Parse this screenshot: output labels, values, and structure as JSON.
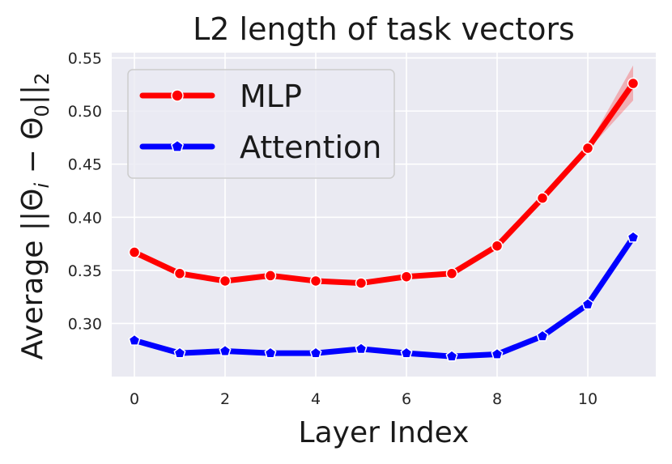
{
  "chart_data": {
    "type": "line",
    "title": "L2 length of task vectors",
    "xlabel": "Layer Index",
    "ylabel": "Average ||Θi − Θ0||2",
    "ylabel_parts": {
      "prefix": "Average ||Θ",
      "sub1": "i",
      "middle": " − Θ",
      "sub2": "0",
      "suffix": "||",
      "sub3": "2"
    },
    "x": [
      0,
      1,
      2,
      3,
      4,
      5,
      6,
      7,
      8,
      9,
      10,
      11
    ],
    "xlim": [
      -0.5,
      11.5
    ],
    "ylim": [
      0.25,
      0.555
    ],
    "xticks": [
      0,
      2,
      4,
      6,
      8,
      10
    ],
    "xtick_labels": [
      "0",
      "2",
      "4",
      "6",
      "8",
      "10"
    ],
    "yticks": [
      0.3,
      0.35,
      0.4,
      0.45,
      0.5,
      0.55
    ],
    "ytick_labels": [
      "0.30",
      "0.35",
      "0.40",
      "0.45",
      "0.50",
      "0.55"
    ],
    "grid": true,
    "legend_position": "upper-left",
    "series": [
      {
        "name": "MLP",
        "color": "#ff0000",
        "marker": "circle",
        "values": [
          0.367,
          0.347,
          0.34,
          0.345,
          0.34,
          0.338,
          0.344,
          0.347,
          0.373,
          0.418,
          0.465,
          0.526
        ],
        "band_lower": [
          0.367,
          0.347,
          0.34,
          0.345,
          0.34,
          0.338,
          0.344,
          0.347,
          0.373,
          0.417,
          0.463,
          0.51
        ],
        "band_upper": [
          0.367,
          0.347,
          0.34,
          0.345,
          0.34,
          0.338,
          0.344,
          0.347,
          0.373,
          0.419,
          0.467,
          0.543
        ]
      },
      {
        "name": "Attention",
        "color": "#0000ff",
        "marker": "pentagon",
        "values": [
          0.284,
          0.272,
          0.274,
          0.272,
          0.272,
          0.276,
          0.272,
          0.269,
          0.271,
          0.288,
          0.318,
          0.381
        ]
      }
    ]
  }
}
